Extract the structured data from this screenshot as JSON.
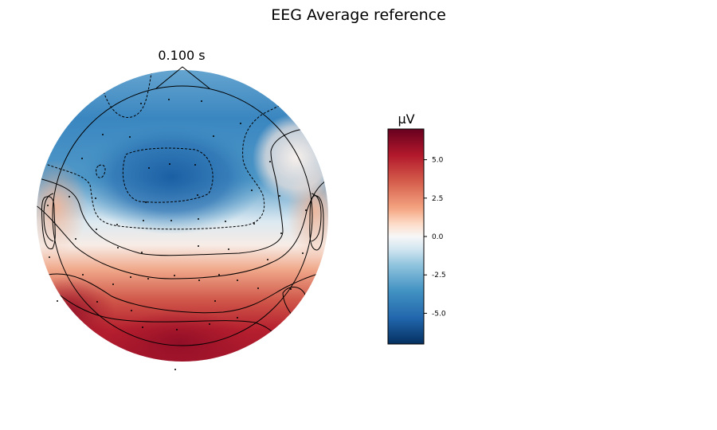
{
  "figure": {
    "title": "EEG Average reference",
    "time_label": "0.100 s"
  },
  "colorbar": {
    "unit": "µV",
    "range": [
      -7,
      7
    ],
    "colormap": "RdBu_r",
    "colors": {
      "low": "#053061",
      "mid_low": "#4393c3",
      "zero": "#f7f7f7",
      "mid_high": "#d6604d",
      "high": "#67001f"
    },
    "ticks": [
      {
        "value": 5.0,
        "label": "5.0"
      },
      {
        "value": 2.5,
        "label": "2.5"
      },
      {
        "value": 0.0,
        "label": "0.0"
      },
      {
        "value": -2.5,
        "label": "-2.5"
      },
      {
        "value": -5.0,
        "label": "-5.0"
      }
    ]
  }
}
